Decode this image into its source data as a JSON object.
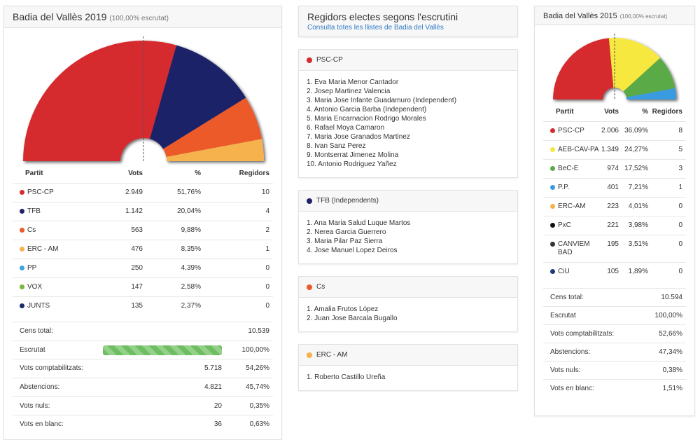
{
  "left": {
    "title": "Badia del Vallès 2019",
    "subtitle": "(100,00% escrutat)",
    "columns": [
      "Partit",
      "Vots",
      "%",
      "Regidors"
    ],
    "parties": [
      {
        "name": "PSC-CP",
        "color": "#d52b2e",
        "votes": "2.949",
        "pct": "51,76%",
        "seats": 10
      },
      {
        "name": "TFB",
        "color": "#1f2268",
        "votes": "1.142",
        "pct": "20,04%",
        "seats": 4
      },
      {
        "name": "Cs",
        "color": "#ec5a2a",
        "votes": "563",
        "pct": "9,88%",
        "seats": 2
      },
      {
        "name": "ERC - AM",
        "color": "#f5b24e",
        "votes": "476",
        "pct": "8,35%",
        "seats": 1
      },
      {
        "name": "PP",
        "color": "#3fa2dd",
        "votes": "250",
        "pct": "4,39%",
        "seats": 0
      },
      {
        "name": "VOX",
        "color": "#79b63c",
        "votes": "147",
        "pct": "2,58%",
        "seats": 0
      },
      {
        "name": "JUNTS",
        "color": "#1d2a6a",
        "votes": "135",
        "pct": "2,37%",
        "seats": 0
      }
    ],
    "summary": [
      {
        "label": "Cens total:",
        "value": "10.539"
      },
      {
        "label": "Escrutat",
        "progress": 100,
        "pct": "100,00%"
      },
      {
        "label": "Vots comptabilitzats:",
        "value": "5.718",
        "pct": "54,26%"
      },
      {
        "label": "Abstencions:",
        "value": "4.821",
        "pct": "45,74%"
      },
      {
        "label": "Vots nuls:",
        "value": "20",
        "pct": "0,35%"
      },
      {
        "label": "Vots en blanc:",
        "value": "36",
        "pct": "0,63%"
      }
    ]
  },
  "middle": {
    "title": "Regidors electes segons l'escrutini",
    "link": "Consulta totes les llistes de Badia del Vallès",
    "lists": [
      {
        "party": "PSC-CP",
        "color": "#d52b2e",
        "members": [
          "1. Eva Maria Menor Cantador",
          "2. Josep Martinez Valencia",
          "3. Maria Jose Infante Guadamuro (Independent)",
          "4. Antonio Garcia Barba (Independent)",
          "5. Maria Encarnacion Rodrigo Morales",
          "6. Rafael Moya Camaron",
          "7. Maria Jose Granados Martinez",
          "8. Ivan Sanz Perez",
          "9. Montserrat Jimenez Molina",
          "10. Antonio Rodriguez Yañez"
        ]
      },
      {
        "party": "TFB (Independents)",
        "color": "#1f2268",
        "members": [
          "1. Ana Maria Salud Luque Martos",
          "2. Nerea Garcia Guerrero",
          "3. Maria Pilar Paz Sierra",
          "4. Jose Manuel Lopez Deiros"
        ]
      },
      {
        "party": "Cs",
        "color": "#ec5a2a",
        "members": [
          "1. Amalia Frutos López",
          "2. Juan Jose Barcala Bugallo"
        ]
      },
      {
        "party": "ERC - AM",
        "color": "#f5b24e",
        "members": [
          "1. Roberto Castillo Ureña"
        ]
      }
    ]
  },
  "right": {
    "title": "Badia del Vallès 2015",
    "subtitle": "(100,00% escrutat)",
    "columns": [
      "Partit",
      "Vots",
      "%",
      "Regidors"
    ],
    "parties": [
      {
        "name": "PSC-CP",
        "color": "#d52b2e",
        "votes": "2.006",
        "pct": "36,09%",
        "seats": 8
      },
      {
        "name": "AEB-CAV-PA",
        "color": "#f7e83f",
        "votes": "1.349",
        "pct": "24,27%",
        "seats": 5
      },
      {
        "name": "BeC-E",
        "color": "#5aaa47",
        "votes": "974",
        "pct": "17,52%",
        "seats": 3
      },
      {
        "name": "P.P.",
        "color": "#3a9be0",
        "votes": "401",
        "pct": "7,21%",
        "seats": 1
      },
      {
        "name": "ERC-AM",
        "color": "#f2b24b",
        "votes": "223",
        "pct": "4,01%",
        "seats": 0
      },
      {
        "name": "PxC",
        "color": "#111111",
        "votes": "221",
        "pct": "3,98%",
        "seats": 0
      },
      {
        "name": "CANVIEM BAD",
        "color": "#333333",
        "votes": "195",
        "pct": "3,51%",
        "seats": 0
      },
      {
        "name": "CiU",
        "color": "#1c3c7c",
        "votes": "105",
        "pct": "1,89%",
        "seats": 0
      }
    ],
    "summary": [
      {
        "label": "Cens total:",
        "value": "10.594"
      },
      {
        "label": "Escrutat",
        "value": "100,00%"
      },
      {
        "label": "Vots comptabilitzats:",
        "value": "52,66%"
      },
      {
        "label": "Abstencions:",
        "value": "47,34%"
      },
      {
        "label": "Vots nuls:",
        "value": "0,38%"
      },
      {
        "label": "Vots en blanc:",
        "value": "1,51%"
      }
    ]
  }
}
